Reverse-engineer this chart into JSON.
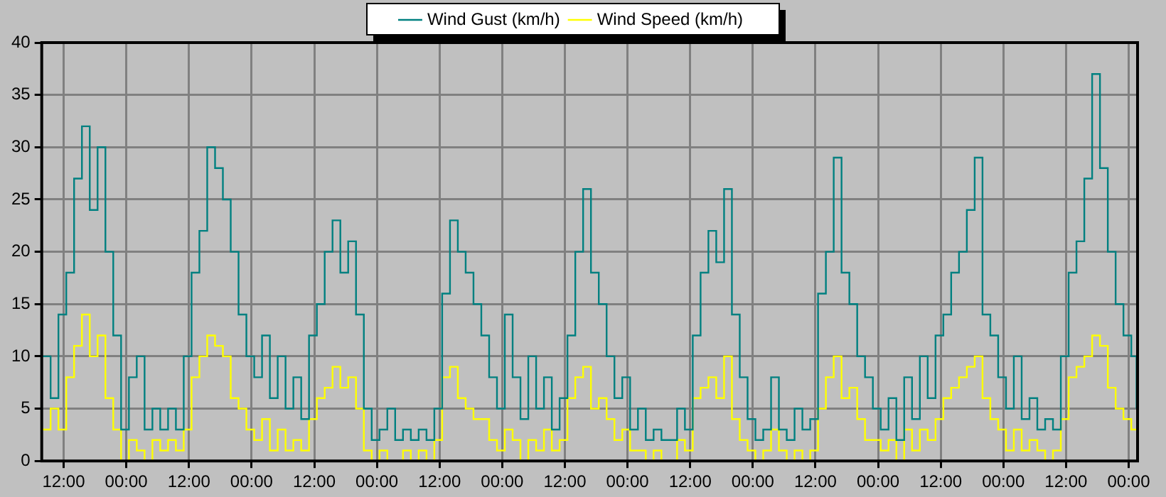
{
  "chart_data": {
    "type": "step",
    "legend": "top",
    "grid": true,
    "marker": "none",
    "xlim": [
      "--01-01T07:48",
      "--01-10T01:42"
    ],
    "ylim": [
      0,
      40
    ],
    "yticks": [
      0,
      5,
      10,
      15,
      20,
      25,
      30,
      35,
      40
    ],
    "xticks": [
      {
        "value": "--01-01T12:00",
        "label": "12:00"
      },
      {
        "value": "--01-02T00:00",
        "label": "00:00"
      },
      {
        "value": "--01-02T12:00",
        "label": "12:00"
      },
      {
        "value": "--01-03T00:00",
        "label": "00:00"
      },
      {
        "value": "--01-03T12:00",
        "label": "12:00"
      },
      {
        "value": "--01-04T00:00",
        "label": "00:00"
      },
      {
        "value": "--01-04T12:00",
        "label": "12:00"
      },
      {
        "value": "--01-05T00:00",
        "label": "00:00"
      },
      {
        "value": "--01-05T12:00",
        "label": "12:00"
      },
      {
        "value": "--01-06T00:00",
        "label": "00:00"
      },
      {
        "value": "--01-06T12:00",
        "label": "12:00"
      },
      {
        "value": "--01-07T00:00",
        "label": "00:00"
      },
      {
        "value": "--01-07T12:00",
        "label": "12:00"
      },
      {
        "value": "--01-08T00:00",
        "label": "00:00"
      },
      {
        "value": "--01-08T12:00",
        "label": "12:00"
      },
      {
        "value": "--01-09T00:00",
        "label": "00:00"
      },
      {
        "value": "--01-09T12:00",
        "label": "12:00"
      },
      {
        "value": "--01-10T00:00",
        "label": "00:00"
      }
    ],
    "x": [
      "--01-01T08:00",
      "--01-01T09:30",
      "--01-01T11:00",
      "--01-01T12:30",
      "--01-01T14:00",
      "--01-01T15:30",
      "--01-01T17:00",
      "--01-01T18:30",
      "--01-01T20:00",
      "--01-01T21:30",
      "--01-01T23:00",
      "--01-02T00:30",
      "--01-02T02:00",
      "--01-02T03:30",
      "--01-02T05:00",
      "--01-02T06:30",
      "--01-02T08:00",
      "--01-02T09:30",
      "--01-02T11:00",
      "--01-02T12:30",
      "--01-02T14:00",
      "--01-02T15:30",
      "--01-02T17:00",
      "--01-02T18:30",
      "--01-02T20:00",
      "--01-02T21:30",
      "--01-02T23:00",
      "--01-03T00:30",
      "--01-03T02:00",
      "--01-03T03:30",
      "--01-03T05:00",
      "--01-03T06:30",
      "--01-03T08:00",
      "--01-03T09:30",
      "--01-03T11:00",
      "--01-03T12:30",
      "--01-03T14:00",
      "--01-03T15:30",
      "--01-03T17:00",
      "--01-03T18:30",
      "--01-03T20:00",
      "--01-03T21:30",
      "--01-03T23:00",
      "--01-04T00:30",
      "--01-04T02:00",
      "--01-04T03:30",
      "--01-04T05:00",
      "--01-04T06:30",
      "--01-04T08:00",
      "--01-04T09:30",
      "--01-04T11:00",
      "--01-04T12:30",
      "--01-04T14:00",
      "--01-04T15:30",
      "--01-04T17:00",
      "--01-04T18:30",
      "--01-04T20:00",
      "--01-04T21:30",
      "--01-04T23:00",
      "--01-05T00:30",
      "--01-05T02:00",
      "--01-05T03:30",
      "--01-05T05:00",
      "--01-05T06:30",
      "--01-05T08:00",
      "--01-05T09:30",
      "--01-05T11:00",
      "--01-05T12:30",
      "--01-05T14:00",
      "--01-05T15:30",
      "--01-05T17:00",
      "--01-05T18:30",
      "--01-05T20:00",
      "--01-05T21:30",
      "--01-05T23:00",
      "--01-06T00:30",
      "--01-06T02:00",
      "--01-06T03:30",
      "--01-06T05:00",
      "--01-06T06:30",
      "--01-06T08:00",
      "--01-06T09:30",
      "--01-06T11:00",
      "--01-06T12:30",
      "--01-06T14:00",
      "--01-06T15:30",
      "--01-06T17:00",
      "--01-06T18:30",
      "--01-06T20:00",
      "--01-06T21:30",
      "--01-06T23:00",
      "--01-07T00:30",
      "--01-07T02:00",
      "--01-07T03:30",
      "--01-07T05:00",
      "--01-07T06:30",
      "--01-07T08:00",
      "--01-07T09:30",
      "--01-07T11:00",
      "--01-07T12:30",
      "--01-07T14:00",
      "--01-07T15:30",
      "--01-07T17:00",
      "--01-07T18:30",
      "--01-07T20:00",
      "--01-07T21:30",
      "--01-07T23:00",
      "--01-08T00:30",
      "--01-08T02:00",
      "--01-08T03:30",
      "--01-08T05:00",
      "--01-08T06:30",
      "--01-08T08:00",
      "--01-08T09:30",
      "--01-08T11:00",
      "--01-08T12:30",
      "--01-08T14:00",
      "--01-08T15:30",
      "--01-08T17:00",
      "--01-08T18:30",
      "--01-08T20:00",
      "--01-08T21:30",
      "--01-08T23:00",
      "--01-09T00:30",
      "--01-09T02:00",
      "--01-09T03:30",
      "--01-09T05:00",
      "--01-09T06:30",
      "--01-09T08:00",
      "--01-09T09:30",
      "--01-09T11:00",
      "--01-09T12:30",
      "--01-09T14:00",
      "--01-09T15:30",
      "--01-09T17:00",
      "--01-09T18:30",
      "--01-09T20:00",
      "--01-09T21:30",
      "--01-09T23:00",
      "--01-10T00:30",
      "--01-10T01:30"
    ],
    "series": [
      {
        "name": "Wind Gust (km/h)",
        "color": "#008080",
        "values": [
          10,
          6,
          14,
          18,
          27,
          32,
          24,
          30,
          20,
          12,
          3,
          8,
          10,
          3,
          5,
          3,
          5,
          3,
          10,
          18,
          22,
          30,
          28,
          25,
          20,
          14,
          10,
          8,
          12,
          6,
          10,
          5,
          8,
          4,
          12,
          15,
          20,
          23,
          18,
          21,
          14,
          5,
          2,
          3,
          5,
          2,
          3,
          2,
          3,
          2,
          5,
          16,
          23,
          20,
          18,
          15,
          12,
          8,
          5,
          14,
          8,
          4,
          10,
          5,
          8,
          3,
          6,
          12,
          20,
          26,
          18,
          15,
          10,
          6,
          8,
          3,
          5,
          2,
          3,
          2,
          2,
          5,
          3,
          12,
          18,
          22,
          19,
          26,
          14,
          8,
          4,
          2,
          3,
          8,
          3,
          2,
          5,
          3,
          4,
          16,
          20,
          29,
          18,
          15,
          10,
          8,
          5,
          3,
          6,
          2,
          8,
          4,
          10,
          6,
          12,
          14,
          18,
          20,
          24,
          29,
          14,
          12,
          8,
          5,
          10,
          4,
          6,
          3,
          4,
          3,
          10,
          18,
          21,
          27,
          37,
          28,
          20,
          15,
          12,
          10,
          5
        ]
      },
      {
        "name": "Wind Speed (km/h)",
        "color": "#ffff00",
        "values": [
          3,
          5,
          3,
          8,
          11,
          14,
          10,
          12,
          6,
          3,
          0,
          2,
          1,
          0,
          2,
          1,
          2,
          1,
          3,
          8,
          10,
          12,
          11,
          10,
          6,
          5,
          3,
          2,
          4,
          1,
          3,
          1,
          2,
          1,
          4,
          6,
          7,
          9,
          7,
          8,
          5,
          1,
          0,
          1,
          0,
          0,
          1,
          0,
          1,
          0,
          2,
          8,
          9,
          6,
          5,
          4,
          4,
          2,
          1,
          3,
          2,
          0,
          2,
          1,
          3,
          1,
          2,
          6,
          8,
          9,
          5,
          6,
          4,
          2,
          3,
          1,
          1,
          0,
          1,
          0,
          0,
          2,
          1,
          6,
          7,
          8,
          6,
          10,
          4,
          2,
          1,
          0,
          1,
          3,
          1,
          0,
          1,
          0,
          1,
          5,
          8,
          10,
          6,
          7,
          4,
          2,
          2,
          1,
          2,
          0,
          3,
          1,
          3,
          2,
          4,
          6,
          7,
          8,
          9,
          10,
          6,
          4,
          3,
          1,
          3,
          1,
          2,
          1,
          0,
          1,
          4,
          8,
          9,
          10,
          12,
          11,
          7,
          5,
          4,
          3,
          3
        ]
      }
    ]
  }
}
